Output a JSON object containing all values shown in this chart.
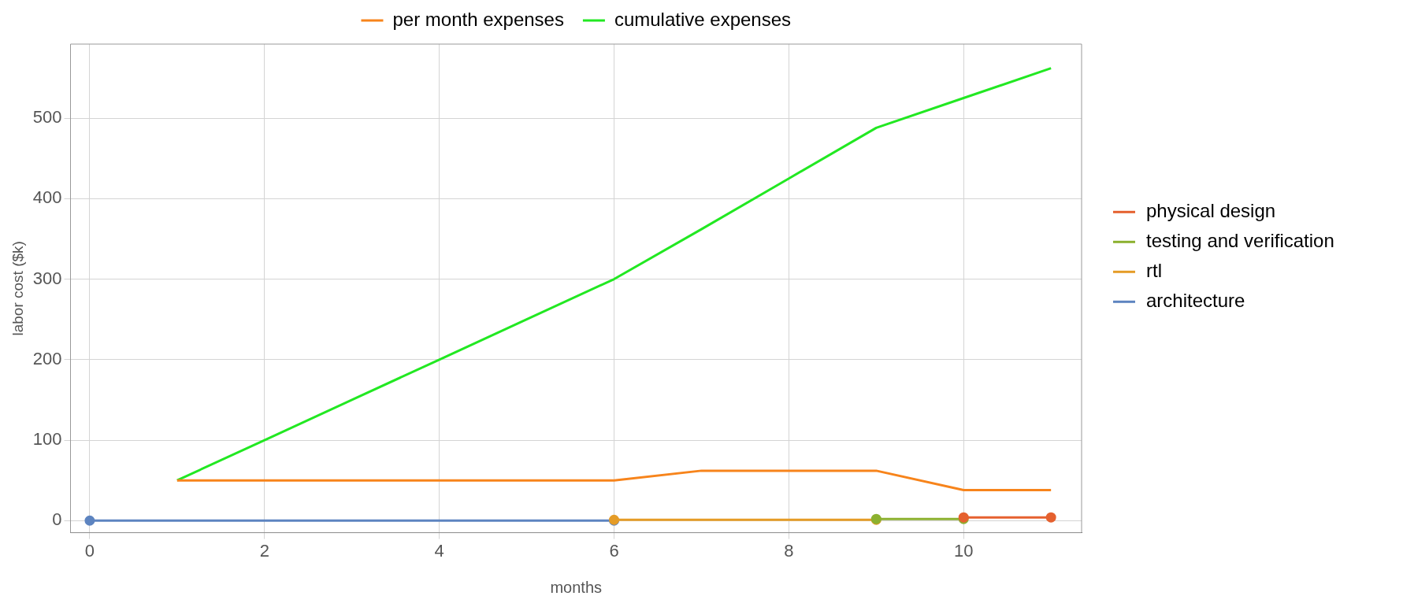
{
  "chart_data": {
    "type": "line",
    "xlabel": "months",
    "ylabel": "labor cost ($k)",
    "xlim": [
      -0.22,
      11.35
    ],
    "ylim": [
      -15,
      592
    ],
    "xticks": [
      0,
      2,
      4,
      6,
      8,
      10
    ],
    "yticks": [
      0,
      100,
      200,
      300,
      400,
      500
    ],
    "grid": true,
    "legend": "top",
    "series": [
      {
        "name": "per month expenses",
        "color": "#f7841b",
        "marker": "none",
        "x": [
          1,
          2,
          3,
          4,
          5,
          6,
          7,
          8,
          9,
          10,
          11
        ],
        "values": [
          50,
          50,
          50,
          50,
          50,
          50,
          62,
          62,
          62,
          38,
          38
        ]
      },
      {
        "name": "cumulative expenses",
        "color": "#22e822",
        "marker": "none",
        "x": [
          1,
          2,
          3,
          4,
          5,
          6,
          7,
          8,
          9,
          10,
          11
        ],
        "values": [
          50,
          100,
          150,
          200,
          250,
          300,
          362,
          425,
          488,
          525,
          562
        ]
      },
      {
        "name": "physical design",
        "color": "#e5612f",
        "marker": "circle",
        "x": [
          10,
          11
        ],
        "values": [
          4,
          4
        ]
      },
      {
        "name": "testing and verification",
        "color": "#8cb130",
        "marker": "circle",
        "x": [
          9,
          10
        ],
        "values": [
          2,
          2
        ]
      },
      {
        "name": "rtl",
        "color": "#e59c27",
        "marker": "circle",
        "x": [
          6,
          9
        ],
        "values": [
          1,
          1
        ]
      },
      {
        "name": "architecture",
        "color": "#5d84c0",
        "marker": "circle",
        "x": [
          0,
          6
        ],
        "values": [
          0,
          0
        ]
      }
    ]
  }
}
